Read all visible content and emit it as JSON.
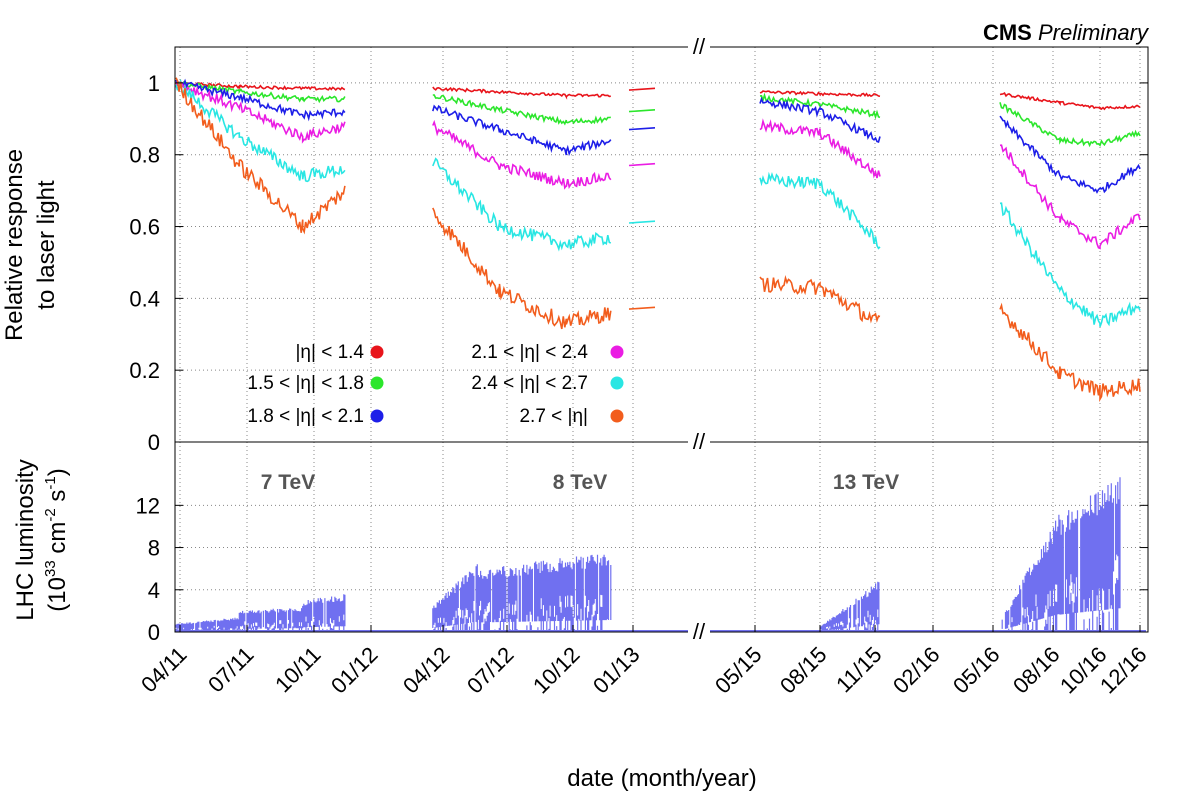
{
  "chart_data": {
    "type": "scatter",
    "banner": {
      "main": "CMS",
      "sub": "Preliminary"
    },
    "xlabel": "date (month/year)",
    "x_ticks": [
      "04/11",
      "07/11",
      "10/11",
      "01/12",
      "04/12",
      "07/12",
      "10/12",
      "01/13",
      "05/15",
      "08/15",
      "11/15",
      "02/16",
      "05/16",
      "08/16",
      "10/16",
      "12/16"
    ],
    "x_break_label": "//",
    "energies": [
      "7 TeV",
      "8 TeV",
      "13 TeV"
    ],
    "top_panel": {
      "ylabel_line1": "Relative response",
      "ylabel_line2": "to laser light",
      "ylim": [
        0,
        1.1
      ],
      "y_ticks": [
        "0",
        "0.2",
        "0.4",
        "0.6",
        "0.8",
        "1"
      ],
      "grid": true,
      "legend": [
        {
          "name": "|η| < 1.4",
          "color": "#e8141b"
        },
        {
          "name": "1.5 < |η| < 1.8",
          "color": "#2be62b"
        },
        {
          "name": "1.8 < |η| < 2.1",
          "color": "#1d1ee8"
        },
        {
          "name": "2.1 < |η| < 2.4",
          "color": "#ea1de3"
        },
        {
          "name": "2.4 < |η| < 2.7",
          "color": "#29e6e3"
        },
        {
          "name": "2.7 < |η|",
          "color": "#f25d1d"
        }
      ],
      "series": [
        {
          "name": "|η| < 1.4",
          "color": "#e8141b",
          "segments": [
            [
              [
                "04/11",
                1.0
              ],
              [
                "07/11",
                0.99
              ],
              [
                "10/11",
                0.985
              ],
              [
                "12/11",
                0.983
              ]
            ],
            [
              [
                "04/12",
                0.985
              ],
              [
                "07/12",
                0.975
              ],
              [
                "10/12",
                0.965
              ],
              [
                "12/12",
                0.965
              ]
            ],
            [
              [
                "01/13",
                0.98
              ]
            ],
            [
              [
                "05/15",
                0.975
              ],
              [
                "08/15",
                0.97
              ],
              [
                "11/15",
                0.965
              ]
            ],
            [
              [
                "05/16",
                0.97
              ],
              [
                "08/16",
                0.945
              ],
              [
                "10/16",
                0.93
              ],
              [
                "12/16",
                0.935
              ]
            ]
          ]
        },
        {
          "name": "1.5 < |η| < 1.8",
          "color": "#2be62b",
          "segments": [
            [
              [
                "04/11",
                1.0
              ],
              [
                "07/11",
                0.975
              ],
              [
                "10/11",
                0.955
              ],
              [
                "12/11",
                0.955
              ]
            ],
            [
              [
                "04/12",
                0.965
              ],
              [
                "07/12",
                0.925
              ],
              [
                "10/12",
                0.89
              ],
              [
                "12/12",
                0.9
              ]
            ],
            [
              [
                "01/13",
                0.92
              ]
            ],
            [
              [
                "05/15",
                0.96
              ],
              [
                "08/15",
                0.94
              ],
              [
                "11/15",
                0.91
              ]
            ],
            [
              [
                "05/16",
                0.94
              ],
              [
                "08/16",
                0.84
              ],
              [
                "10/16",
                0.83
              ],
              [
                "12/16",
                0.86
              ]
            ]
          ]
        },
        {
          "name": "1.8 < |η| < 2.1",
          "color": "#1d1ee8",
          "segments": [
            [
              [
                "04/11",
                1.0
              ],
              [
                "07/11",
                0.96
              ],
              [
                "10/11",
                0.91
              ],
              [
                "12/11",
                0.92
              ]
            ],
            [
              [
                "04/12",
                0.93
              ],
              [
                "07/12",
                0.87
              ],
              [
                "10/12",
                0.81
              ],
              [
                "12/12",
                0.84
              ]
            ],
            [
              [
                "01/13",
                0.87
              ]
            ],
            [
              [
                "05/15",
                0.95
              ],
              [
                "08/15",
                0.92
              ],
              [
                "11/15",
                0.84
              ]
            ],
            [
              [
                "05/16",
                0.9
              ],
              [
                "08/16",
                0.74
              ],
              [
                "10/16",
                0.7
              ],
              [
                "12/16",
                0.77
              ]
            ]
          ]
        },
        {
          "name": "2.1 < |η| < 2.4",
          "color": "#ea1de3",
          "segments": [
            [
              [
                "04/11",
                1.0
              ],
              [
                "07/11",
                0.93
              ],
              [
                "10/11",
                0.85
              ],
              [
                "12/11",
                0.88
              ]
            ],
            [
              [
                "04/12",
                0.88
              ],
              [
                "07/12",
                0.77
              ],
              [
                "10/12",
                0.72
              ],
              [
                "12/12",
                0.74
              ]
            ],
            [
              [
                "01/13",
                0.77
              ]
            ],
            [
              [
                "05/15",
                0.88
              ],
              [
                "08/15",
                0.86
              ],
              [
                "11/15",
                0.74
              ]
            ],
            [
              [
                "05/16",
                0.83
              ],
              [
                "08/16",
                0.62
              ],
              [
                "10/16",
                0.55
              ],
              [
                "12/16",
                0.63
              ]
            ]
          ]
        },
        {
          "name": "2.4 < |η| < 2.7",
          "color": "#29e6e3",
          "segments": [
            [
              [
                "04/11",
                1.0
              ],
              [
                "07/11",
                0.85
              ],
              [
                "10/11",
                0.74
              ],
              [
                "12/11",
                0.76
              ]
            ],
            [
              [
                "04/12",
                0.78
              ],
              [
                "07/12",
                0.6
              ],
              [
                "10/12",
                0.55
              ],
              [
                "12/12",
                0.57
              ]
            ],
            [
              [
                "01/13",
                0.61
              ]
            ],
            [
              [
                "05/15",
                0.73
              ],
              [
                "08/15",
                0.72
              ],
              [
                "11/15",
                0.55
              ]
            ],
            [
              [
                "05/16",
                0.66
              ],
              [
                "08/16",
                0.42
              ],
              [
                "10/16",
                0.33
              ],
              [
                "12/16",
                0.38
              ]
            ]
          ]
        },
        {
          "name": "2.7 < |η|",
          "color": "#f25d1d",
          "segments": [
            [
              [
                "04/11",
                1.0
              ],
              [
                "07/11",
                0.77
              ],
              [
                "10/11",
                0.6
              ],
              [
                "12/11",
                0.7
              ]
            ],
            [
              [
                "04/12",
                0.64
              ],
              [
                "07/12",
                0.42
              ],
              [
                "10/12",
                0.33
              ],
              [
                "12/12",
                0.36
              ]
            ],
            [
              [
                "01/13",
                0.37
              ]
            ],
            [
              [
                "05/15",
                0.44
              ],
              [
                "08/15",
                0.43
              ],
              [
                "11/15",
                0.33
              ]
            ],
            [
              [
                "05/16",
                0.37
              ],
              [
                "08/16",
                0.19
              ],
              [
                "10/16",
                0.14
              ],
              [
                "12/16",
                0.16
              ]
            ]
          ]
        }
      ]
    },
    "bottom_panel": {
      "ylabel_line1": "LHC luminosity",
      "ylabel_line2_base": "(10",
      "ylabel_line2_exp1": "33",
      "ylabel_line2_mid": " cm",
      "ylabel_line2_exp2": "-2",
      "ylabel_line2_s": " s",
      "ylabel_line2_exp3": "-1",
      "ylabel_line2_end": ")",
      "ylim": [
        0,
        18
      ],
      "y_ticks": [
        "0",
        "4",
        "8",
        "12"
      ],
      "color": "#7070f0",
      "fills": [
        {
          "from": "04/11",
          "to": "07/11",
          "peak_start": 0.8,
          "peak_end": 1.4
        },
        {
          "from": "07/11",
          "to": "10/11",
          "peak_start": 2.0,
          "peak_end": 2.4
        },
        {
          "from": "10/11",
          "to": "12/11",
          "peak_start": 3.0,
          "peak_end": 3.6
        },
        {
          "from": "04/12",
          "to": "06/12",
          "peak_start": 2.5,
          "peak_end": 6.5
        },
        {
          "from": "06/12",
          "to": "12/12",
          "peak_start": 6.0,
          "peak_end": 7.6
        },
        {
          "from": "08/15",
          "to": "11/15",
          "peak_start": 0.5,
          "peak_end": 5.0
        },
        {
          "from": "05/16",
          "to": "08/16",
          "peak_start": 1.0,
          "peak_end": 11.5
        },
        {
          "from": "08/16",
          "to": "11/16",
          "peak_start": 11.0,
          "peak_end": 15.0
        }
      ]
    }
  }
}
